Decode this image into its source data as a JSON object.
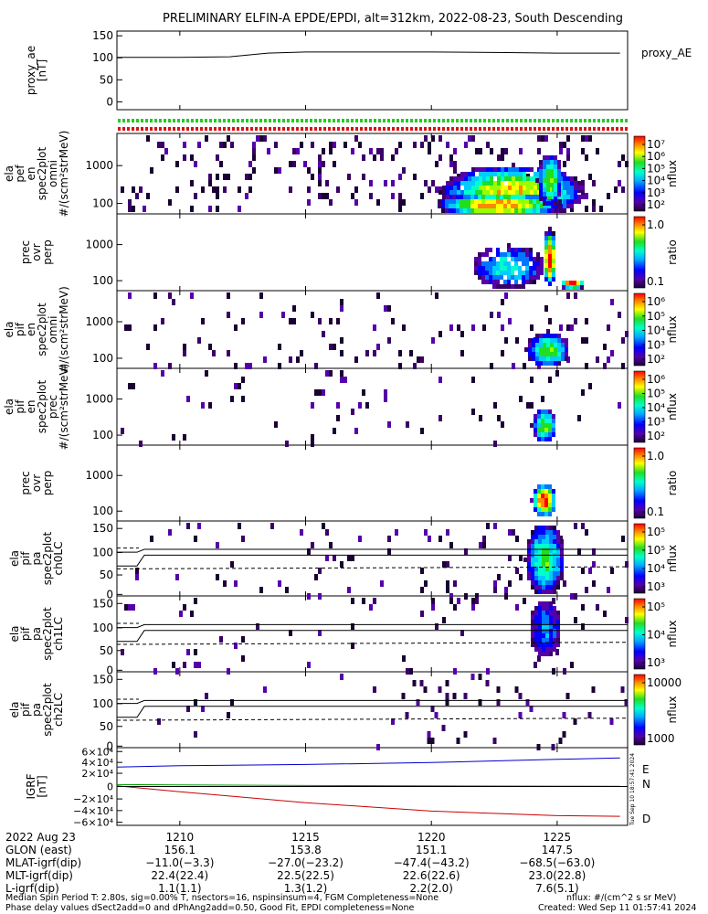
{
  "title": "PRELIMINARY ELFIN-A EPDE/EPDI, alt=312km, 2022-08-23, South Descending",
  "colors": {
    "ae_line": "#000000",
    "green_bar": "#22cc22",
    "red_bar": "#dd1111",
    "igrf_east": "#0000cc",
    "igrf_north": "#009900",
    "igrf_down": "#cc0000"
  },
  "chart_data": [
    {
      "type": "line",
      "id": "ae",
      "ylabel": "proxy_ae [nT]",
      "yticks": [
        "150",
        "100",
        "50",
        "0"
      ],
      "ylim": [
        0,
        150
      ],
      "x": [
        1207.5,
        1210,
        1212,
        1213.5,
        1215,
        1217,
        1220,
        1223,
        1225,
        1227.5
      ],
      "series": [
        {
          "name": "proxy_AE",
          "values": [
            100,
            100,
            101,
            108,
            110,
            110,
            110,
            109,
            108,
            108
          ]
        }
      ]
    },
    {
      "type": "heatmap",
      "id": "elaperf",
      "ylabel": [
        "ela",
        "pef",
        "en",
        "spec2plot",
        "omni",
        "#/(scm²strMeV)"
      ],
      "yticks": [
        "1000",
        "100"
      ],
      "colorbar": {
        "label": "nflux",
        "ticks": [
          "10⁷",
          "10⁶",
          "10⁵",
          "10⁴",
          "10³",
          "10²"
        ]
      }
    },
    {
      "type": "heatmap",
      "id": "precovrperp_e",
      "ylabel": [
        "prec",
        "ovr",
        "perp"
      ],
      "yticks": [
        "1000",
        "100"
      ],
      "colorbar": {
        "label": "ratio",
        "ticks": [
          "1.0",
          "0.1"
        ]
      }
    },
    {
      "type": "heatmap",
      "id": "elapif",
      "ylabel": [
        "ela",
        "pif",
        "en",
        "spec2plot",
        "omni",
        "#/(scm²strMeV)"
      ],
      "yticks": [
        "1000",
        "100"
      ],
      "colorbar": {
        "label": "nflux",
        "ticks": [
          "10⁶",
          "10⁵",
          "10⁴",
          "10³",
          "10²"
        ]
      }
    },
    {
      "type": "heatmap",
      "id": "elapif_prec",
      "ylabel": [
        "ela",
        "pif",
        "en",
        "spec2plot",
        "prec",
        "#/(scm²strMeV)"
      ],
      "yticks": [
        "1000",
        "100"
      ],
      "colorbar": {
        "label": "nflux",
        "ticks": [
          "10⁶",
          "10⁵",
          "10⁴",
          "10³",
          "10²"
        ]
      }
    },
    {
      "type": "heatmap",
      "id": "precovrperp_i",
      "ylabel": [
        "prec",
        "ovr",
        "perp"
      ],
      "yticks": [
        "1000",
        "100"
      ],
      "colorbar": {
        "label": "ratio",
        "ticks": [
          "1.0",
          "0.1"
        ]
      }
    },
    {
      "type": "heatmap",
      "id": "pa_ch0",
      "ylabel": [
        "ela",
        "pif",
        "pa",
        "spec2plot",
        "ch0LC"
      ],
      "yticks": [
        "150",
        "100",
        "50",
        "0"
      ],
      "ylim": [
        0,
        180
      ],
      "colorbar": {
        "label": "nflux",
        "ticks": [
          "10⁵",
          "10⁵",
          "10⁴",
          "10³"
        ]
      }
    },
    {
      "type": "heatmap",
      "id": "pa_ch1",
      "ylabel": [
        "ela",
        "pif",
        "pa",
        "spec2plot",
        "ch1LC"
      ],
      "yticks": [
        "150",
        "100",
        "50",
        "0"
      ],
      "ylim": [
        0,
        180
      ],
      "colorbar": {
        "label": "nflux",
        "ticks": [
          "10⁵",
          "10⁴",
          "10³"
        ]
      }
    },
    {
      "type": "heatmap",
      "id": "pa_ch2",
      "ylabel": [
        "ela",
        "pif",
        "pa",
        "spec2plot",
        "ch2LC"
      ],
      "yticks": [
        "150",
        "100",
        "50",
        "0"
      ],
      "ylim": [
        0,
        180
      ],
      "colorbar": {
        "label": "nflux",
        "ticks": [
          "10000",
          "1000"
        ]
      }
    },
    {
      "type": "line",
      "id": "igrf",
      "ylabel": "IGRF [nT]",
      "yticks": [
        "6×10⁴",
        "4×10⁴",
        "2×10⁴",
        "0",
        "−2×10⁴",
        "−4×10⁴",
        "−6×10⁴"
      ],
      "ylim": [
        -60000,
        60000
      ],
      "x": [
        1207.5,
        1210,
        1215,
        1220,
        1225,
        1227.5
      ],
      "series": [
        {
          "name": "E",
          "values": [
            30000,
            32000,
            34000,
            37000,
            42000,
            44000
          ]
        },
        {
          "name": "N",
          "values": [
            3000,
            2500,
            1500,
            1000,
            500,
            400
          ]
        },
        {
          "name": "D",
          "values": [
            1000,
            -8000,
            -25000,
            -38000,
            -45000,
            -46000
          ]
        }
      ],
      "legend": [
        "E",
        "N",
        "D"
      ]
    }
  ],
  "xaxis": {
    "date": "2022 Aug 23",
    "ticks": [
      "1210",
      "1215",
      "1220",
      "1225"
    ],
    "rows": [
      {
        "label": "GLON (east)",
        "values": [
          "156.1",
          "153.8",
          "151.1",
          "147.5"
        ]
      },
      {
        "label": "MLAT-igrf(dip)",
        "values": [
          "−11.0(−3.3)",
          "−27.0(−23.2)",
          "−47.4(−43.2)",
          "−68.5(−63.0)"
        ]
      },
      {
        "label": "MLT-igrf(dip)",
        "values": [
          "22.4(22.4)",
          "22.5(22.5)",
          "22.6(22.6)",
          "23.0(22.8)"
        ]
      },
      {
        "label": "L-igrf(dip)",
        "values": [
          "1.1(1.1)",
          "1.3(1.2)",
          "2.2(2.0)",
          "7.6(5.1)"
        ]
      }
    ]
  },
  "footer": {
    "line1": "Median Spin Period T: 2.80s, sig=0.00% T, nsectors=16, nspinsinsum=4, FGM Completeness=None",
    "line2": "Phase delay values dSect2add=0 and dPhAng2add=0.50, Good Fit, EPDI completeness=None",
    "units": "nflux: #/(cm^2 s sr MeV)",
    "created": "Created: Wed Sep 11 01:57:41 2024",
    "side_stamp": "Tue Sep 10 18:57:41 2024"
  }
}
